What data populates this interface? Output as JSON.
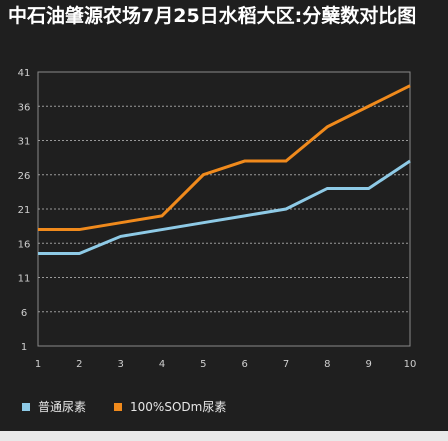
{
  "chart_data": {
    "type": "line",
    "title": "中石油肇源农场7月25日水稻大区:分蘖数对比图",
    "x": [
      1,
      2,
      3,
      4,
      5,
      6,
      7,
      8,
      9,
      10
    ],
    "xlim": [
      1,
      10
    ],
    "yticks": [
      1,
      6,
      11,
      16,
      21,
      26,
      31,
      36,
      41
    ],
    "ylim": [
      1,
      41
    ],
    "grid": true,
    "legend_position": "bottom-left",
    "series": [
      {
        "name": "普通尿素",
        "color": "#8ecae6",
        "values": [
          14.5,
          14.5,
          17,
          18,
          19,
          20,
          21,
          24,
          24,
          28
        ]
      },
      {
        "name": "100%SODm尿素",
        "color": "#f08a1c",
        "values": [
          18,
          18,
          19,
          20,
          26,
          28,
          28,
          33,
          36,
          39
        ]
      }
    ]
  }
}
